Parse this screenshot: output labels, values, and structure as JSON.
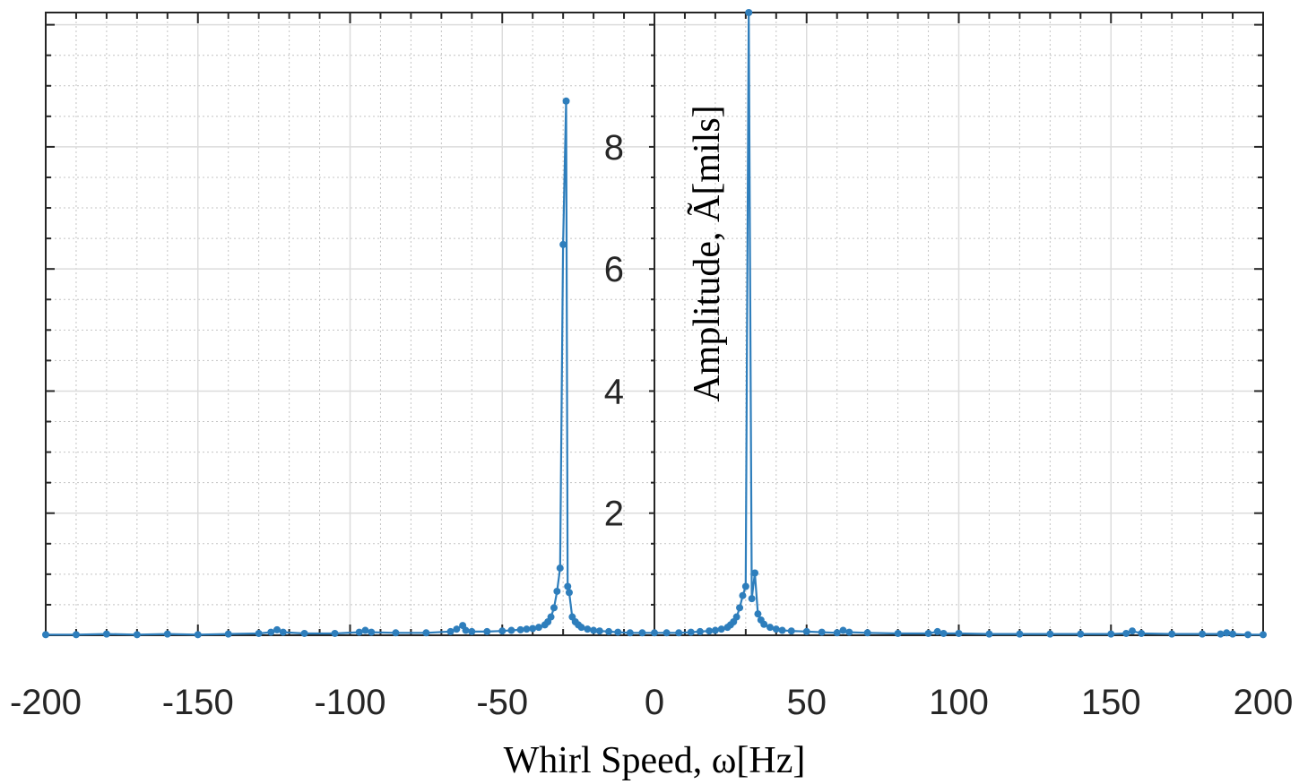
{
  "chart_data": {
    "type": "line",
    "xlabel": "Whirl Speed, ω[Hz]",
    "ylabel": "Amplitude, Ã[mils]",
    "xlim": [
      -200,
      200
    ],
    "ylim": [
      0,
      10.2
    ],
    "x_ticks": [
      "-200",
      "-150",
      "-100",
      "-50",
      "0",
      "50",
      "100",
      "150",
      "200"
    ],
    "y_ticks": [
      "2",
      "4",
      "6",
      "8"
    ],
    "grid": "major and minor",
    "axis_location": "origin",
    "series": [
      {
        "color": "#2e7ebc",
        "marker": "dot",
        "x": [
          -200,
          -190,
          -180,
          -170,
          -160,
          -150,
          -140,
          -130,
          -126,
          -124,
          -122,
          -115,
          -105,
          -97,
          -95,
          -93,
          -85,
          -75,
          -67,
          -65,
          -63,
          -62,
          -60,
          -55,
          -50,
          -47,
          -44,
          -42,
          -40,
          -38,
          -36,
          -35,
          -34,
          -33,
          -32,
          -31,
          -30,
          -29,
          -28.5,
          -28,
          -27,
          -26,
          -25,
          -24,
          -22,
          -20,
          -18,
          -15,
          -12,
          -8,
          -4,
          0,
          4,
          8,
          12,
          15,
          18,
          20,
          22,
          24,
          25,
          26,
          27,
          28,
          29,
          30,
          31,
          32,
          33,
          34,
          35,
          36,
          38,
          40,
          42,
          45,
          50,
          55,
          60,
          62,
          64,
          70,
          80,
          90,
          93,
          95,
          100,
          110,
          120,
          130,
          140,
          150,
          155,
          157,
          160,
          170,
          180,
          186,
          188,
          190,
          195,
          200
        ],
        "y": [
          0.01,
          0.01,
          0.02,
          0.01,
          0.02,
          0.01,
          0.02,
          0.03,
          0.05,
          0.09,
          0.05,
          0.03,
          0.03,
          0.05,
          0.08,
          0.05,
          0.04,
          0.04,
          0.06,
          0.1,
          0.16,
          0.08,
          0.06,
          0.06,
          0.07,
          0.08,
          0.09,
          0.1,
          0.11,
          0.13,
          0.17,
          0.22,
          0.3,
          0.45,
          0.72,
          1.1,
          6.4,
          8.75,
          0.8,
          0.7,
          0.3,
          0.22,
          0.17,
          0.13,
          0.1,
          0.08,
          0.07,
          0.06,
          0.05,
          0.04,
          0.04,
          0.04,
          0.04,
          0.04,
          0.05,
          0.06,
          0.07,
          0.08,
          0.1,
          0.13,
          0.17,
          0.22,
          0.3,
          0.45,
          0.65,
          0.8,
          10.2,
          0.6,
          1.02,
          0.35,
          0.25,
          0.18,
          0.13,
          0.1,
          0.08,
          0.07,
          0.06,
          0.05,
          0.04,
          0.08,
          0.05,
          0.04,
          0.03,
          0.03,
          0.06,
          0.03,
          0.03,
          0.02,
          0.02,
          0.02,
          0.02,
          0.02,
          0.03,
          0.07,
          0.03,
          0.02,
          0.02,
          0.02,
          0.04,
          0.02,
          0.01,
          0.01
        ]
      }
    ]
  }
}
